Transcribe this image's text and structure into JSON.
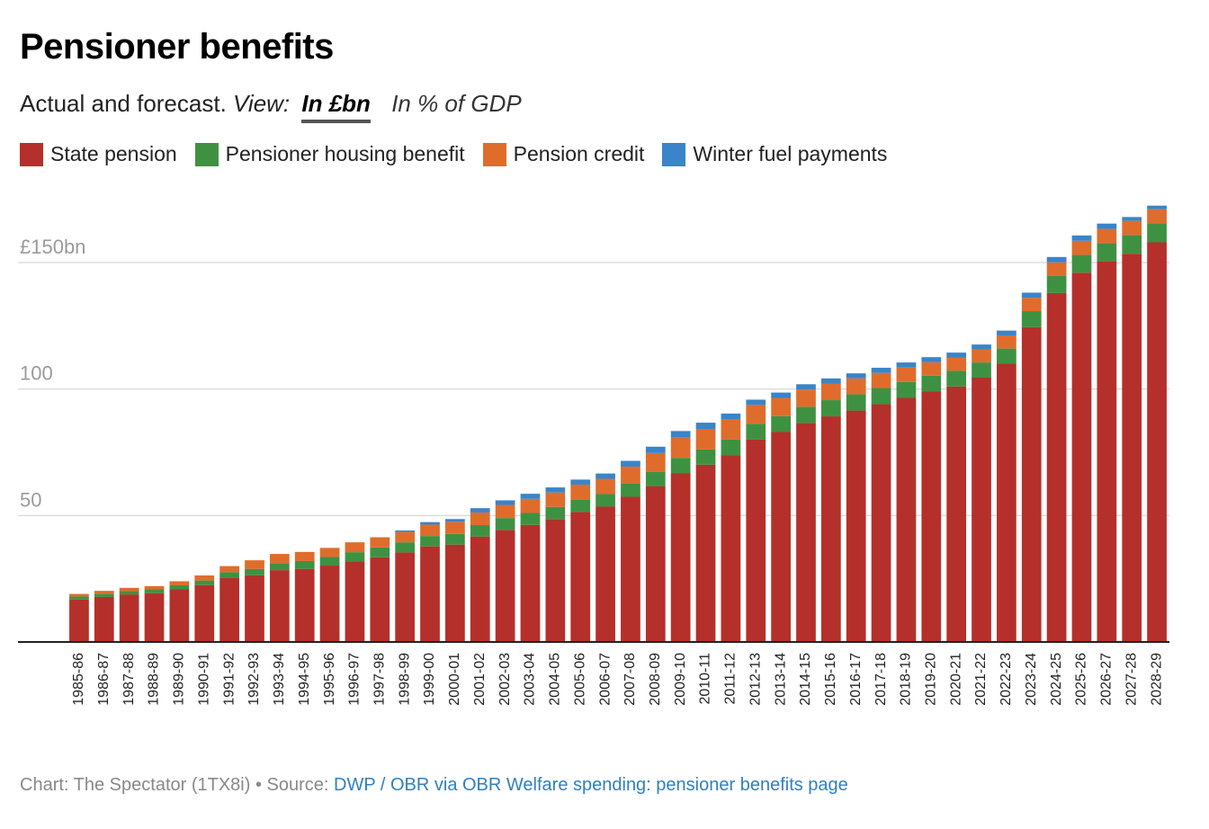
{
  "header": {
    "title": "Pensioner benefits",
    "subtitle_prefix": "Actual and forecast.",
    "view_label": "View:",
    "toggle_active": "In £bn",
    "toggle_inactive": "In % of GDP"
  },
  "footer": {
    "credit": "Chart: The Spectator (1TX8i) • Source: ",
    "source_link": "DWP / OBR via OBR Welfare spending: pensioner benefits page"
  },
  "colors": {
    "state_pension": "#b5302a",
    "housing_benefit": "#3f9142",
    "pension_credit": "#e06c2c",
    "winter_fuel": "#3a84c9"
  },
  "chart_data": {
    "type": "bar",
    "stacked": true,
    "categories": [
      "1985-86",
      "1986-87",
      "1987-88",
      "1988-89",
      "1989-90",
      "1990-91",
      "1991-92",
      "1992-93",
      "1993-94",
      "1994-95",
      "1995-96",
      "1996-97",
      "1997-98",
      "1998-99",
      "1999-00",
      "2000-01",
      "2001-02",
      "2002-03",
      "2003-04",
      "2004-05",
      "2005-06",
      "2006-07",
      "2007-08",
      "2008-09",
      "2009-10",
      "2010-11",
      "2011-12",
      "2012-13",
      "2013-14",
      "2014-15",
      "2015-16",
      "2016-17",
      "2017-18",
      "2018-19",
      "2019-20",
      "2020-21",
      "2021-22",
      "2022-23",
      "2023-24",
      "2024-25",
      "2025-26",
      "2026-27",
      "2027-28",
      "2028-29"
    ],
    "series": [
      {
        "name": "State pension",
        "color": "#b5302a",
        "values": [
          16.8,
          17.8,
          18.8,
          19.3,
          20.8,
          22.5,
          25.5,
          26.4,
          28.4,
          28.9,
          30.2,
          31.8,
          33.5,
          35.4,
          37.8,
          38.5,
          41.7,
          44.3,
          46.3,
          48.6,
          51.4,
          53.5,
          57.4,
          61.5,
          66.8,
          70.1,
          73.9,
          80.0,
          83.0,
          86.6,
          89.2,
          91.5,
          94.0,
          96.5,
          99.0,
          101.0,
          104.5,
          110.0,
          124.5,
          138.0,
          146.0,
          150.5,
          153.5,
          158.0
        ]
      },
      {
        "name": "Pensioner housing benefit",
        "color": "#3f9142",
        "values": [
          1.2,
          1.3,
          1.4,
          1.5,
          1.6,
          1.8,
          2.1,
          2.5,
          2.8,
          3.1,
          3.4,
          3.7,
          3.9,
          4.0,
          4.1,
          4.2,
          4.5,
          4.7,
          4.7,
          4.8,
          4.9,
          5.0,
          5.3,
          5.7,
          6.0,
          6.0,
          6.2,
          6.3,
          6.3,
          6.4,
          6.4,
          6.4,
          6.4,
          6.3,
          6.3,
          6.2,
          6.0,
          6.0,
          6.3,
          6.8,
          7.0,
          7.2,
          7.4,
          7.5
        ]
      },
      {
        "name": "Pension credit",
        "color": "#e06c2c",
        "values": [
          1.0,
          1.1,
          1.2,
          1.3,
          1.6,
          2.0,
          2.4,
          3.4,
          3.6,
          3.6,
          3.6,
          3.9,
          4.0,
          4.1,
          4.5,
          4.8,
          5.0,
          5.2,
          5.6,
          5.7,
          5.9,
          6.0,
          6.6,
          7.5,
          8.0,
          8.0,
          7.9,
          7.4,
          7.2,
          6.8,
          6.6,
          6.3,
          6.0,
          5.7,
          5.3,
          5.3,
          5.2,
          5.2,
          5.3,
          5.3,
          5.6,
          5.6,
          5.6,
          5.6
        ]
      },
      {
        "name": "Winter fuel payments",
        "color": "#3a84c9",
        "values": [
          0,
          0,
          0,
          0,
          0,
          0,
          0,
          0,
          0,
          0,
          0,
          0,
          0,
          0.6,
          1.0,
          1.1,
          1.7,
          1.8,
          2.0,
          2.0,
          2.0,
          2.1,
          2.3,
          2.5,
          2.6,
          2.6,
          2.3,
          2.1,
          2.1,
          2.1,
          2.0,
          2.0,
          2.0,
          2.0,
          2.0,
          1.9,
          1.9,
          1.9,
          2.0,
          2.1,
          2.1,
          2.1,
          1.5,
          1.4
        ]
      }
    ],
    "ylim": [
      0,
      175
    ],
    "yticks": [
      {
        "value": 50,
        "label": "50"
      },
      {
        "value": 100,
        "label": "100"
      },
      {
        "value": 150,
        "label": "£150bn"
      }
    ],
    "grid": true,
    "legend": "top-left"
  }
}
